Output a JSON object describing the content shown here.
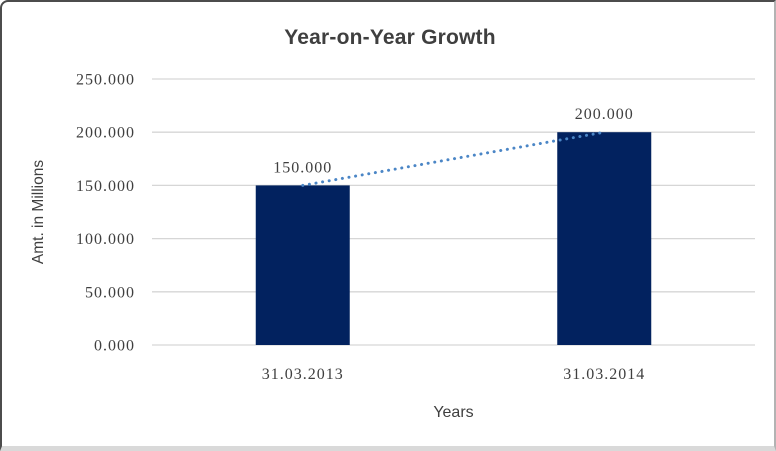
{
  "chart_data": {
    "type": "bar",
    "title": "Year-on-Year Growth",
    "xlabel": "Years",
    "ylabel": "Amt. in Millions",
    "categories": [
      "31.03.2013",
      "31.03.2014"
    ],
    "values": [
      150000,
      200000
    ],
    "value_labels": [
      "150.000",
      "200.000"
    ],
    "series_note": "single series of bars with dotted linear trendline connecting bar tops",
    "ytick_values": [
      0,
      50000,
      100000,
      150000,
      200000,
      250000
    ],
    "ytick_labels": [
      "0.000",
      "50.000",
      "100.000",
      "150.000",
      "200.000",
      "250.000"
    ],
    "ylim": [
      0,
      250000
    ],
    "grid": true,
    "legend": "none",
    "colors": {
      "bar": "#02225f",
      "trendline": "#4b86c6",
      "gridline": "#d6d6d6",
      "text": "#3f3f3f"
    },
    "trendline": {
      "style": "dotted",
      "from_value": 150000,
      "to_value": 200000
    }
  }
}
